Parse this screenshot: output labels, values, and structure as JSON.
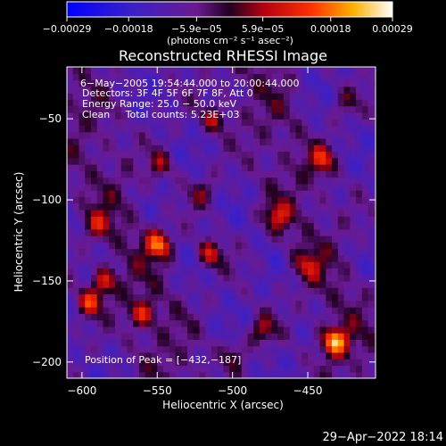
{
  "chart_data": {
    "type": "heatmap",
    "title": "Reconstructed RHESSI Image",
    "xlabel": "Heliocentric X (arcsec)",
    "ylabel": "Heliocentric Y (arcsec)",
    "xlim": [
      -610,
      -405
    ],
    "ylim": [
      -210,
      -18
    ],
    "x_ticks": [
      -600,
      -550,
      -500,
      -450
    ],
    "x_tick_labels": [
      "−600",
      "−550",
      "−500",
      "−450"
    ],
    "y_ticks": [
      -50,
      -100,
      -150,
      -200
    ],
    "y_tick_labels": [
      "−50",
      "−100",
      "−150",
      "−200"
    ],
    "colorbar": {
      "range": [
        -0.00029,
        0.00029
      ],
      "ticks": [
        -0.00029,
        -0.00018,
        -5.9e-05,
        5.9e-05,
        0.00018,
        0.00029
      ],
      "tick_labels": [
        "−0.00029",
        "−0.00018",
        "−5.9e−05",
        "5.9e−05",
        "0.00018",
        "0.00029"
      ],
      "units": "(photons cm⁻² s⁻¹ asec⁻²)"
    },
    "annotations": [
      "6−May−2005 19:54:44.000 to 20:00:44.000",
      "Detectors: 3F 4F 5F 6F 7F 8F, Att 0",
      "Energy Range: 25.0 − 50.0 keV",
      "Clean     Total counts: 5.23E+03"
    ],
    "peak_label": "Position of Peak = [−432,−187]",
    "peak": [
      -432,
      -187
    ],
    "sources": [
      {
        "x": -432,
        "y": -187,
        "value": 0.00029
      },
      {
        "x": -549,
        "y": -127,
        "value": 0.00024
      },
      {
        "x": -595,
        "y": -163,
        "value": 0.00021
      },
      {
        "x": -585,
        "y": -150,
        "value": 0.00018
      },
      {
        "x": -515,
        "y": -133,
        "value": 0.00018
      },
      {
        "x": -560,
        "y": -170,
        "value": 0.00017
      },
      {
        "x": -440,
        "y": -75,
        "value": 0.00017
      },
      {
        "x": -512,
        "y": -50,
        "value": 0.00015
      },
      {
        "x": -470,
        "y": -110,
        "value": 0.00015
      },
      {
        "x": -480,
        "y": -180,
        "value": 0.00014
      },
      {
        "x": -548,
        "y": -78,
        "value": 0.00012
      },
      {
        "x": -590,
        "y": -115,
        "value": 0.00012
      },
      {
        "x": -450,
        "y": -140,
        "value": 0.00012
      },
      {
        "x": -500,
        "y": -195,
        "value": 0.0001
      },
      {
        "x": -520,
        "y": -95,
        "value": 0.0001
      },
      {
        "x": -425,
        "y": -40,
        "value": 8e-05
      }
    ]
  },
  "footer": {
    "date": "29−Apr−2022 18:14"
  }
}
